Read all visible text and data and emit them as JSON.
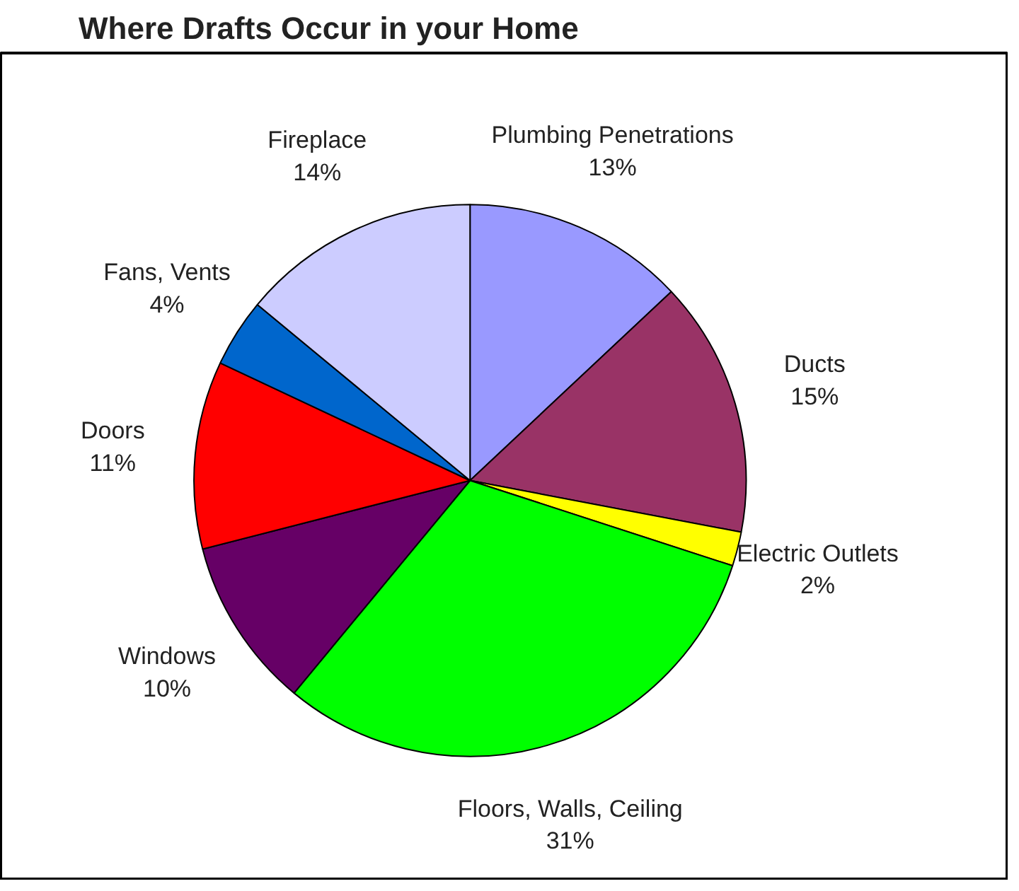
{
  "chart_data": {
    "type": "pie",
    "title": "Where Drafts Occur in your Home",
    "categories": [
      "Plumbing Penetrations",
      "Ducts",
      "Electric Outlets",
      "Floors, Walls, Ceiling",
      "Windows",
      "Doors",
      "Fans, Vents",
      "Fireplace"
    ],
    "values": [
      13,
      15,
      2,
      31,
      10,
      11,
      4,
      14
    ],
    "value_labels": [
      "13%",
      "15%",
      "2%",
      "31%",
      "10%",
      "11%",
      "4%",
      "14%"
    ],
    "colors": [
      "#9999ff",
      "#993366",
      "#ffff00",
      "#00ff00",
      "#660066",
      "#ff0000",
      "#0066cc",
      "#ccccff"
    ]
  }
}
